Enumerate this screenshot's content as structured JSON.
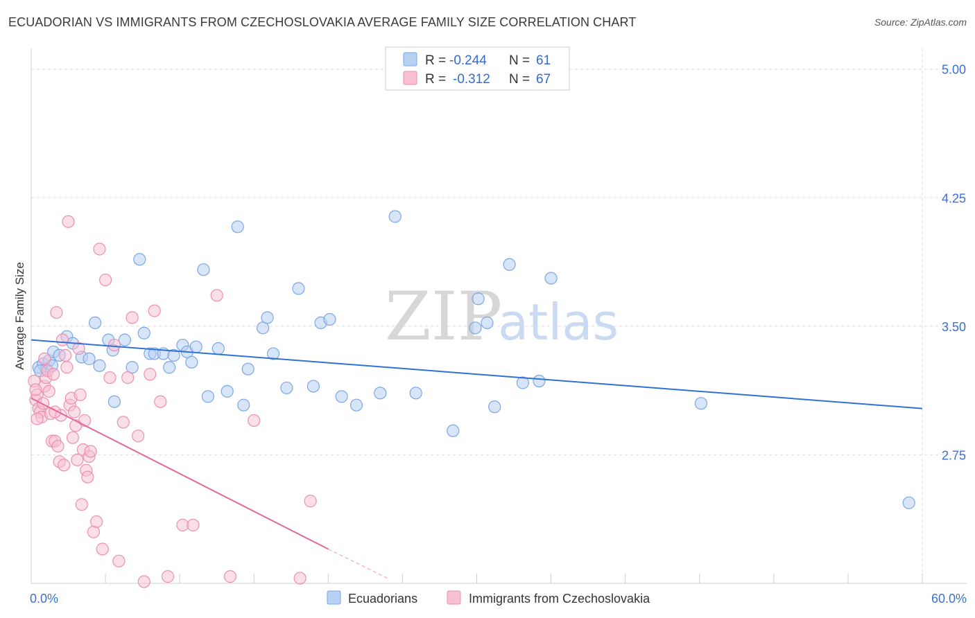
{
  "title": "ECUADORIAN VS IMMIGRANTS FROM CZECHOSLOVAKIA AVERAGE FAMILY SIZE CORRELATION CHART",
  "source": "Source: ZipAtlas.com",
  "watermark": {
    "zip": "ZIP",
    "atlas": "atlas"
  },
  "colors": {
    "blue_fill": "#b8d0f2",
    "blue_stroke": "#7aa6e6",
    "blue_line": "#2f72d4",
    "pink_fill": "#f7bfd1",
    "pink_stroke": "#ec8fae",
    "pink_line": "#e2689a",
    "axis_text": "#3b6fd0",
    "grid": "#dddddd"
  },
  "legend": {
    "rows": [
      {
        "r_label": "R =",
        "r_value": "-0.244",
        "n_label": "N =",
        "n_value": "61"
      },
      {
        "r_label": "R =",
        "r_value": "-0.312",
        "n_label": "N =",
        "n_value": "67"
      }
    ]
  },
  "chart_data": {
    "type": "scatter",
    "title": "ECUADORIAN VS IMMIGRANTS FROM CZECHOSLOVAKIA AVERAGE FAMILY SIZE CORRELATION CHART",
    "xlabel": "",
    "ylabel": "Average Family Size",
    "xlim": [
      0,
      60
    ],
    "ylim": [
      2.0,
      5.12
    ],
    "x_tick_labels": [
      "0.0%",
      "60.0%"
    ],
    "y_ticks": [
      2.75,
      3.5,
      4.25,
      5.0
    ],
    "y_tick_labels": [
      "2.75",
      "3.50",
      "4.25",
      "5.00"
    ],
    "grid": true,
    "legend_position": "top-center",
    "series": [
      {
        "name": "Ecuadorians",
        "trend": {
          "x": [
            0,
            60
          ],
          "y": [
            3.42,
            3.02
          ]
        },
        "points": [
          [
            0.5,
            3.26
          ],
          [
            0.8,
            3.28
          ],
          [
            1.0,
            3.25
          ],
          [
            1.2,
            3.3
          ],
          [
            1.5,
            3.35
          ],
          [
            1.9,
            3.33
          ],
          [
            2.4,
            3.44
          ],
          [
            2.8,
            3.4
          ],
          [
            3.4,
            3.32
          ],
          [
            3.9,
            3.31
          ],
          [
            4.3,
            3.52
          ],
          [
            4.6,
            3.27
          ],
          [
            5.2,
            3.42
          ],
          [
            5.6,
            3.06
          ],
          [
            5.5,
            3.36
          ],
          [
            6.3,
            3.42
          ],
          [
            6.8,
            3.26
          ],
          [
            7.3,
            3.89
          ],
          [
            7.6,
            3.46
          ],
          [
            8.0,
            3.34
          ],
          [
            8.3,
            3.34
          ],
          [
            8.9,
            3.34
          ],
          [
            9.3,
            3.26
          ],
          [
            9.6,
            3.33
          ],
          [
            10.2,
            3.39
          ],
          [
            10.5,
            3.35
          ],
          [
            10.8,
            3.29
          ],
          [
            11.1,
            3.38
          ],
          [
            11.6,
            3.83
          ],
          [
            11.9,
            3.09
          ],
          [
            12.6,
            3.37
          ],
          [
            13.2,
            3.12
          ],
          [
            13.9,
            4.08
          ],
          [
            14.3,
            3.04
          ],
          [
            14.6,
            3.25
          ],
          [
            15.6,
            3.49
          ],
          [
            15.9,
            3.55
          ],
          [
            16.3,
            3.34
          ],
          [
            17.2,
            3.14
          ],
          [
            18.0,
            3.72
          ],
          [
            19.0,
            3.15
          ],
          [
            19.5,
            3.52
          ],
          [
            20.1,
            3.54
          ],
          [
            20.9,
            3.09
          ],
          [
            21.9,
            3.04
          ],
          [
            23.5,
            3.11
          ],
          [
            24.5,
            4.14
          ],
          [
            25.9,
            3.11
          ],
          [
            28.4,
            2.89
          ],
          [
            29.9,
            3.49
          ],
          [
            30.1,
            3.66
          ],
          [
            30.7,
            3.52
          ],
          [
            31.2,
            3.03
          ],
          [
            32.2,
            3.86
          ],
          [
            33.1,
            3.17
          ],
          [
            34.2,
            3.18
          ],
          [
            35.0,
            3.78
          ],
          [
            45.1,
            3.05
          ],
          [
            59.1,
            2.47
          ],
          [
            0.6,
            3.24
          ],
          [
            1.4,
            3.27
          ]
        ]
      },
      {
        "name": "Immigrants from Czechoslovakia",
        "trend": {
          "x": [
            0,
            20
          ],
          "y": [
            3.08,
            2.2
          ]
        },
        "trend_dashed": {
          "x": [
            20,
            24
          ],
          "y": [
            2.2,
            2.03
          ]
        },
        "points": [
          [
            0.2,
            3.18
          ],
          [
            0.3,
            3.07
          ],
          [
            0.4,
            3.1
          ],
          [
            0.5,
            3.02
          ],
          [
            0.6,
            3.0
          ],
          [
            0.7,
            2.97
          ],
          [
            0.8,
            3.05
          ],
          [
            0.9,
            3.15
          ],
          [
            1.0,
            3.2
          ],
          [
            1.1,
            3.24
          ],
          [
            1.2,
            3.12
          ],
          [
            1.3,
            2.99
          ],
          [
            1.4,
            2.83
          ],
          [
            1.5,
            3.22
          ],
          [
            1.6,
            2.83
          ],
          [
            1.7,
            3.58
          ],
          [
            1.8,
            2.8
          ],
          [
            1.9,
            2.71
          ],
          [
            2.0,
            2.98
          ],
          [
            2.1,
            3.42
          ],
          [
            2.2,
            2.69
          ],
          [
            2.3,
            3.33
          ],
          [
            2.4,
            3.26
          ],
          [
            2.5,
            4.11
          ],
          [
            2.6,
            3.04
          ],
          [
            2.7,
            3.08
          ],
          [
            2.8,
            2.85
          ],
          [
            2.9,
            3.0
          ],
          [
            3.0,
            2.92
          ],
          [
            3.1,
            2.72
          ],
          [
            3.2,
            3.37
          ],
          [
            3.3,
            3.1
          ],
          [
            3.4,
            2.46
          ],
          [
            3.5,
            2.78
          ],
          [
            3.6,
            2.95
          ],
          [
            3.7,
            2.66
          ],
          [
            3.8,
            2.62
          ],
          [
            3.9,
            2.74
          ],
          [
            4.0,
            2.77
          ],
          [
            4.2,
            2.3
          ],
          [
            4.4,
            2.36
          ],
          [
            4.6,
            3.95
          ],
          [
            4.8,
            2.2
          ],
          [
            5.0,
            3.77
          ],
          [
            5.3,
            3.2
          ],
          [
            5.6,
            3.39
          ],
          [
            5.9,
            2.13
          ],
          [
            6.2,
            2.94
          ],
          [
            6.5,
            3.2
          ],
          [
            6.8,
            3.55
          ],
          [
            7.2,
            2.86
          ],
          [
            7.6,
            2.01
          ],
          [
            8.0,
            3.22
          ],
          [
            8.3,
            3.59
          ],
          [
            8.7,
            3.06
          ],
          [
            9.2,
            2.04
          ],
          [
            10.2,
            2.34
          ],
          [
            10.9,
            2.34
          ],
          [
            12.5,
            3.68
          ],
          [
            13.4,
            2.04
          ],
          [
            15.0,
            2.95
          ],
          [
            18.1,
            2.03
          ],
          [
            18.8,
            2.48
          ],
          [
            0.3,
            3.13
          ],
          [
            0.4,
            2.96
          ],
          [
            0.9,
            3.31
          ],
          [
            1.6,
            3.0
          ]
        ]
      }
    ]
  }
}
